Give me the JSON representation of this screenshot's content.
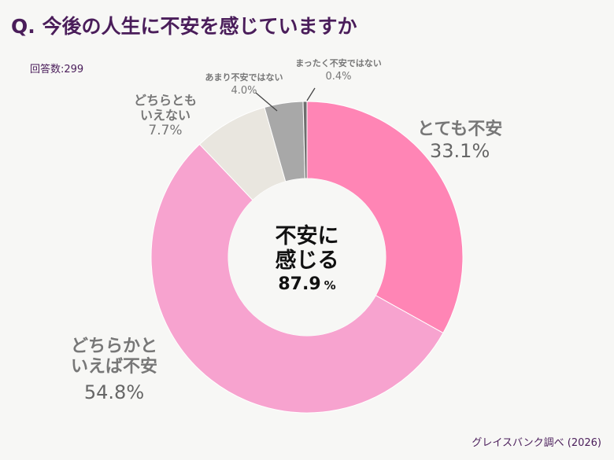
{
  "title": "Q. 今後の人生に不安を感じていますか",
  "respondents": "回答数:299",
  "source": "グレイスバンク調べ (2026)",
  "center": {
    "line1": "不安に",
    "line2": "感じる",
    "value": "87.9",
    "unit": "%"
  },
  "chart_data": {
    "type": "pie",
    "donut": true,
    "title": "Q. 今後の人生に不安を感じていますか",
    "unit": "%",
    "slices": [
      {
        "label": "とても不安",
        "value": 33.1,
        "value_label": "33.1%",
        "color": "#ff85b5"
      },
      {
        "label": "どちらかといえば不安",
        "value": 54.8,
        "value_label": "54.8%",
        "color": "#f7a3cf"
      },
      {
        "label": "どちらともいえない",
        "value": 7.7,
        "value_label": "7.7%",
        "color": "#e9e6df"
      },
      {
        "label": "あまり不安ではない",
        "value": 4.0,
        "value_label": "4.0%",
        "color": "#a8a8a8"
      },
      {
        "label": "まったく不安ではない",
        "value": 0.4,
        "value_label": "0.4%",
        "color": "#6e6e6e"
      }
    ]
  }
}
